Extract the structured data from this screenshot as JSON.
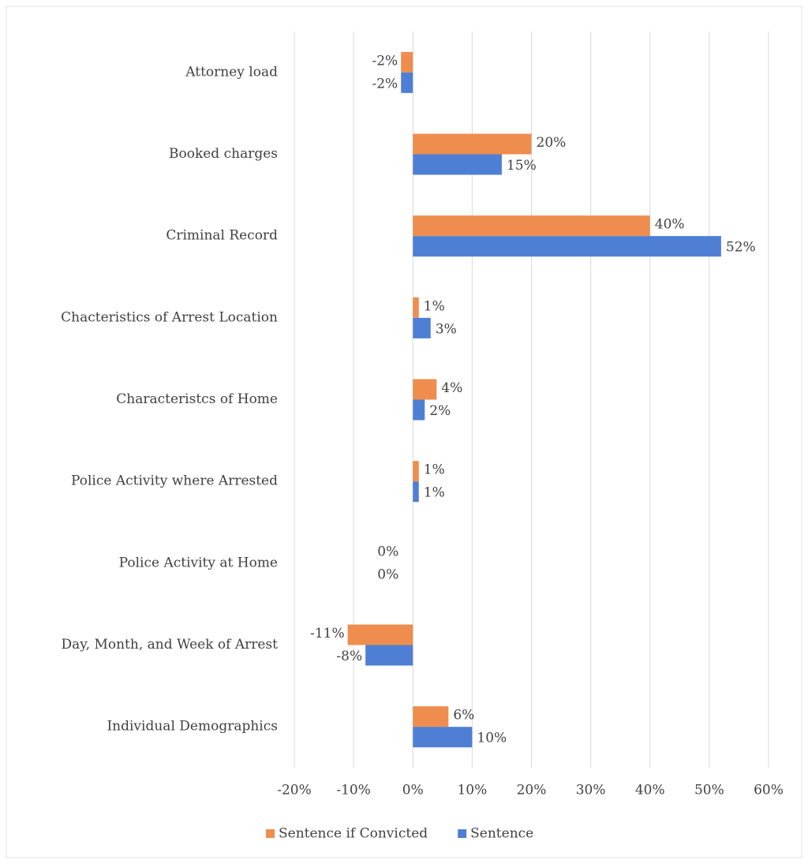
{
  "chart_data": {
    "type": "barh",
    "categories": [
      "Attorney load",
      "Booked charges",
      "Criminal Record",
      "Chacteristics of Arrest Location",
      "Characteristcs of Home",
      "Police Activity where Arrested",
      "Police Activity at Home",
      "Day, Month, and Week of Arrest",
      "Individual Demographics"
    ],
    "series": [
      {
        "name": "Sentence if Convicted",
        "color": "#ee8d4e",
        "values": [
          -2,
          20,
          40,
          1,
          4,
          1,
          0,
          -11,
          6
        ],
        "value_labels": [
          "-2%",
          "20%",
          "40%",
          "1%",
          "4%",
          "1%",
          "0%",
          "-11%",
          "6%"
        ]
      },
      {
        "name": "Sentence",
        "color": "#4f7fd4",
        "values": [
          -2,
          15,
          52,
          3,
          2,
          1,
          0,
          -8,
          10
        ],
        "value_labels": [
          "-2%",
          "15%",
          "52%",
          "3%",
          "2%",
          "1%",
          "0%",
          "-8%",
          "10%"
        ]
      }
    ],
    "xlim": [
      -20,
      60
    ],
    "xticks": [
      {
        "value": -20,
        "label": "-20%"
      },
      {
        "value": -10,
        "label": "-10%"
      },
      {
        "value": 0,
        "label": "0%"
      },
      {
        "value": 10,
        "label": "10%"
      },
      {
        "value": 20,
        "label": "20%"
      },
      {
        "value": 30,
        "label": "30%"
      },
      {
        "value": 40,
        "label": "40%"
      },
      {
        "value": 50,
        "label": "50%"
      },
      {
        "value": 60,
        "label": "60%"
      }
    ],
    "grid": true,
    "legend": "bottom"
  }
}
